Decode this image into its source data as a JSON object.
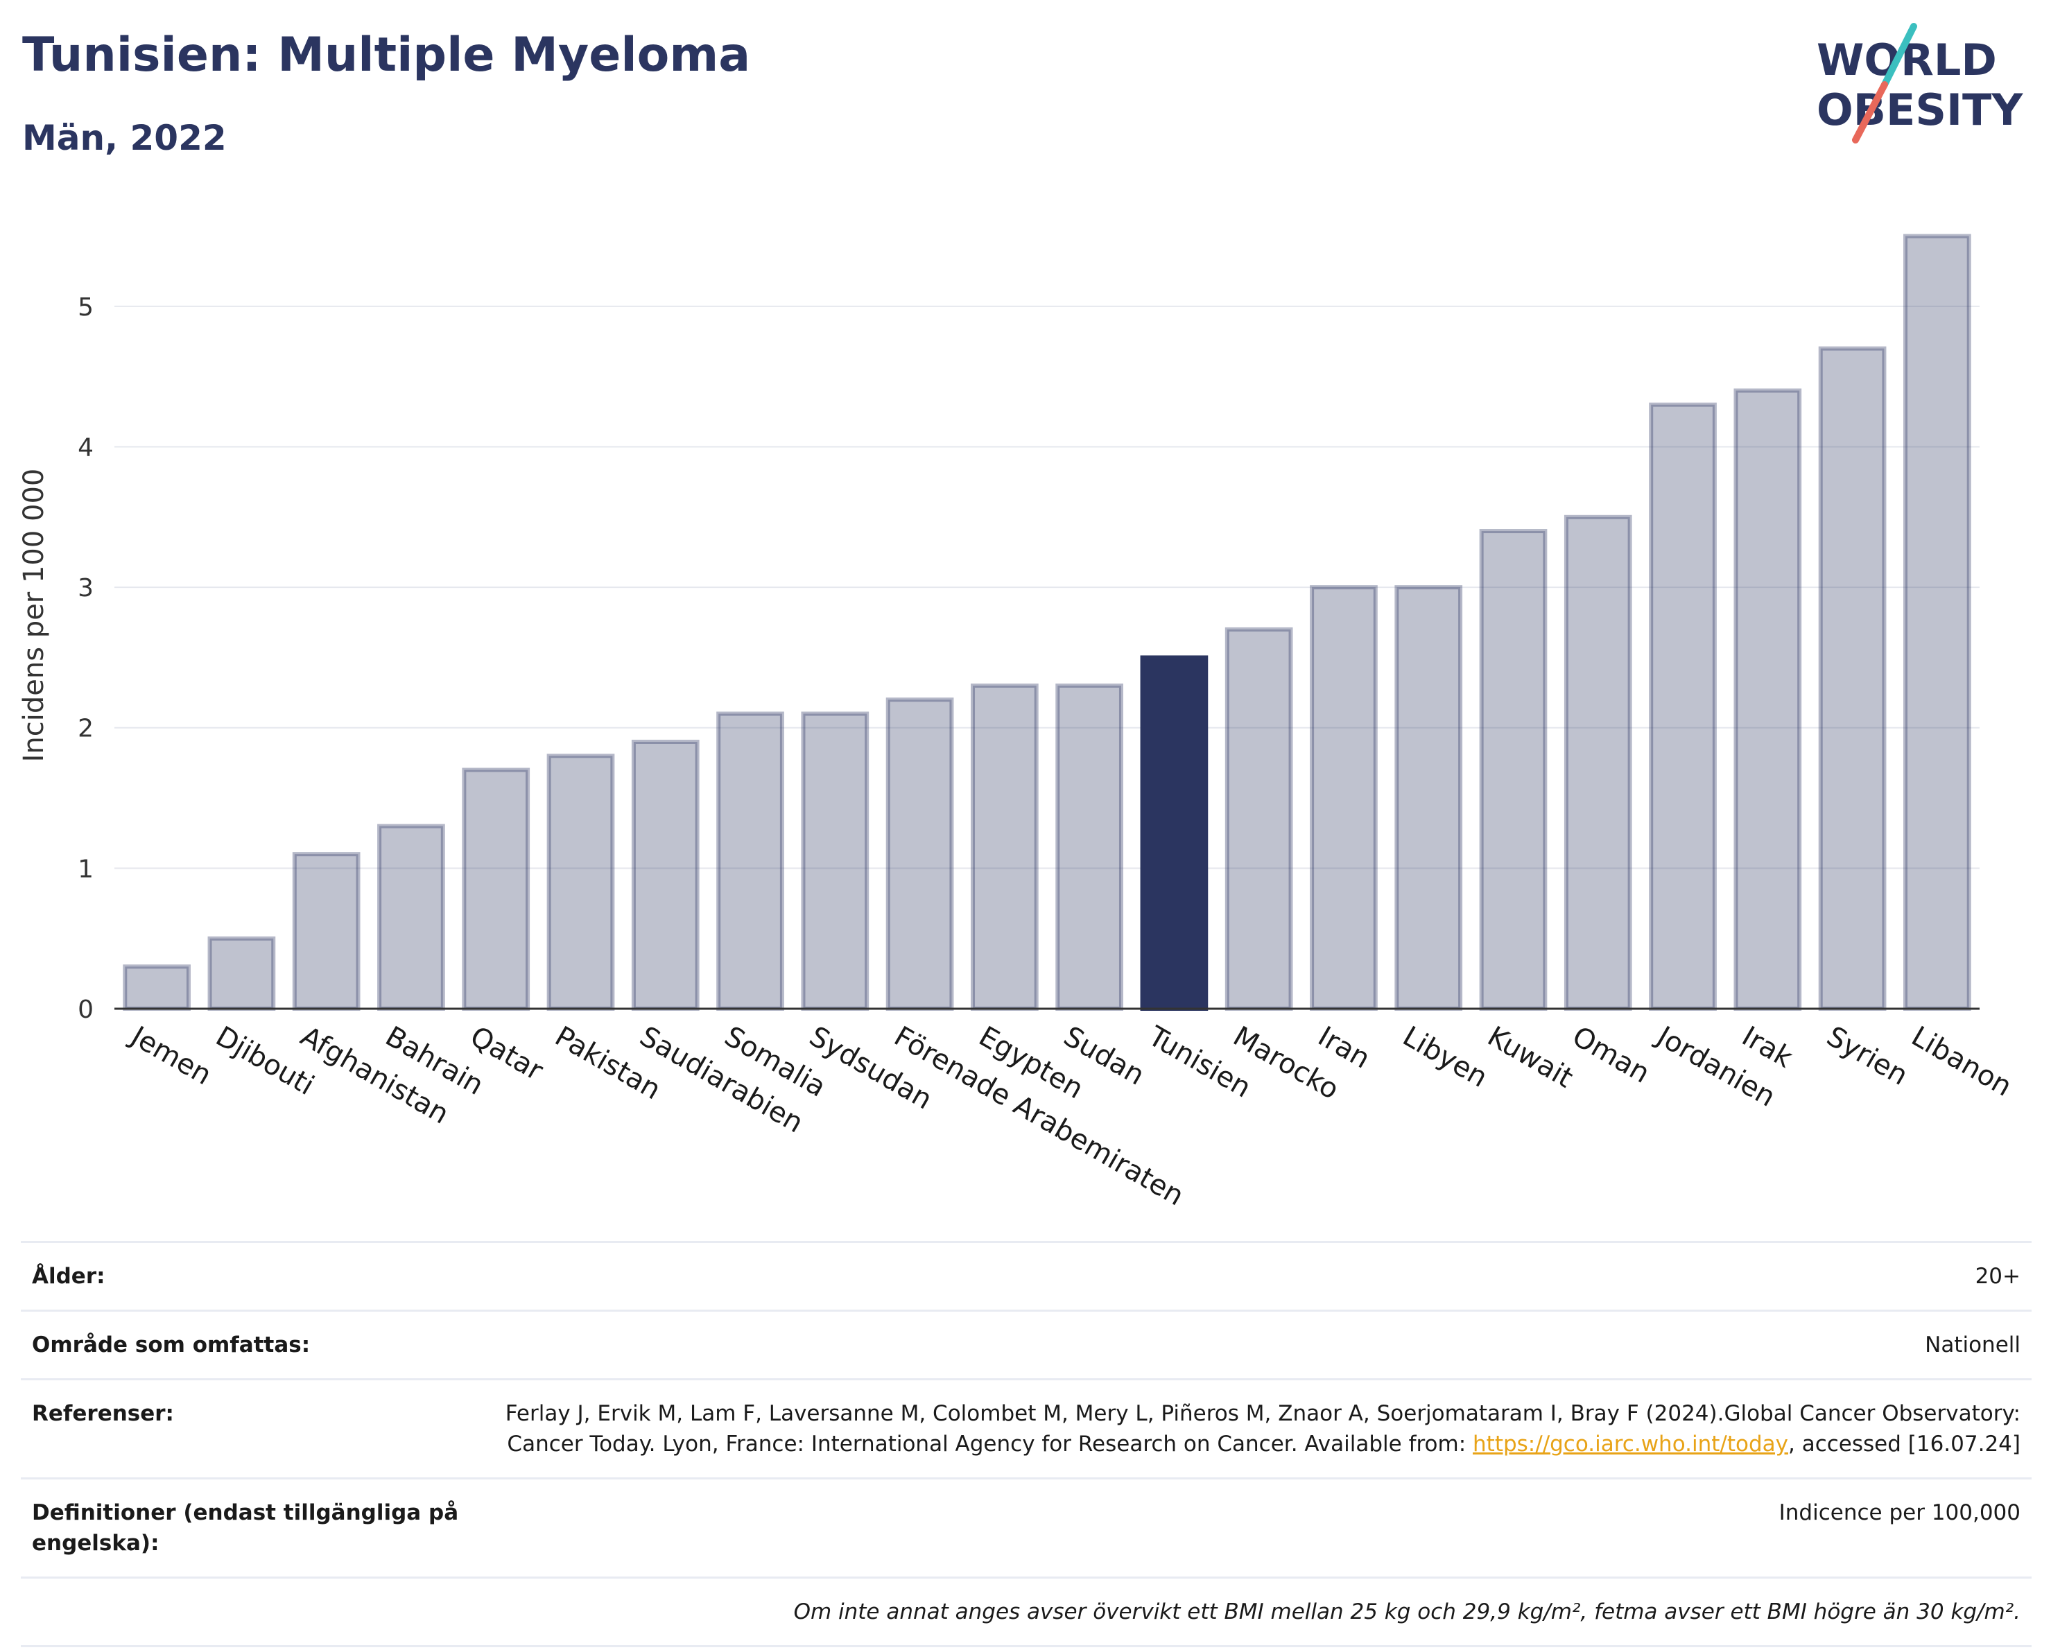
{
  "header": {
    "title": "Tunisien: Multiple Myeloma",
    "subtitle": "Män, 2022"
  },
  "logo": {
    "line1": "WORLD",
    "line2": "OBESITY",
    "colors": {
      "text": "#2b3560",
      "slash_top": "#3bbfbf",
      "slash_bottom": "#e8685a"
    }
  },
  "chart_data": {
    "type": "bar",
    "ylabel": "Incidens per 100 000",
    "xlabel": "",
    "ylim": [
      0,
      5.7
    ],
    "yticks": [
      0,
      1,
      2,
      3,
      4,
      5
    ],
    "grid": true,
    "highlight": "Tunisien",
    "colors": {
      "bar": "#2b3560",
      "highlight": "#2b3560"
    },
    "categories": [
      "Jemen",
      "Djibouti",
      "Afghanistan",
      "Bahrain",
      "Qatar",
      "Pakistan",
      "Saudiarabien",
      "Somalia",
      "Sydsudan",
      "Förenade Arabemiraten",
      "Egypten",
      "Sudan",
      "Tunisien",
      "Marocko",
      "Iran",
      "Libyen",
      "Kuwait",
      "Oman",
      "Jordanien",
      "Irak",
      "Syrien",
      "Libanon"
    ],
    "values": [
      0.3,
      0.5,
      1.1,
      1.3,
      1.7,
      1.8,
      1.9,
      2.1,
      2.1,
      2.2,
      2.3,
      2.3,
      2.5,
      2.7,
      3.0,
      3.0,
      3.4,
      3.5,
      4.3,
      4.4,
      4.7,
      5.5
    ]
  },
  "meta": {
    "age_label": "Ålder:",
    "age_value": "20+",
    "area_label": "Område som omfattas:",
    "area_value": "Nationell",
    "ref_label": "Referenser:",
    "ref_text1": "Ferlay J, Ervik M, Lam F, Laversanne M, Colombet M, Mery L, Piñeros M, Znaor A, Soerjomataram I, Bray F (2024).Global Cancer Observatory: Cancer Today. Lyon, France: International Agency for Research on Cancer. Available from: ",
    "ref_link": "https://gco.iarc.who.int/today",
    "ref_text2": ", accessed [16.07.24]",
    "def_label": "Definitioner (endast tillgängliga på engelska):",
    "def_value": "Indicence per 100,000",
    "note": "Om inte annat anges avser övervikt ett BMI mellan 25 kg och 29,9 kg/m², fetma avser ett BMI högre än 30 kg/m²."
  }
}
